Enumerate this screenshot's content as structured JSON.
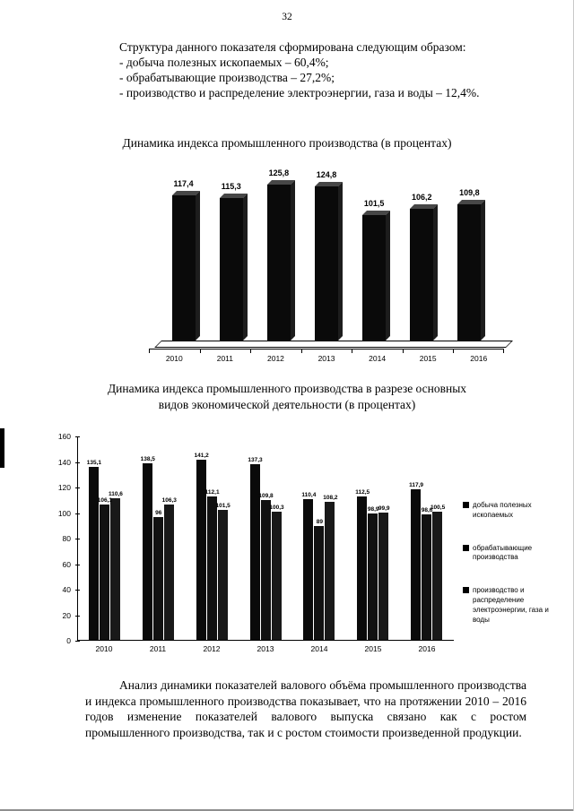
{
  "page": {
    "number": "32"
  },
  "intro": {
    "lead": "Структура данного показателя сформирована следующим образом:",
    "items": [
      "- добыча полезных ископаемых – 60,4%;",
      "- обрабатывающие производства – 27,2%;",
      "- производство и распределение электроэнергии, газа и воды – 12,4%."
    ]
  },
  "chart2": {
    "title_line1": "Динамика индекса промышленного производства в разрезе основных",
    "title_line2": "видов экономической деятельности (в процентах)"
  },
  "closing": "Анализ динамики показателей валового объёма промышленного производства и индекса промышленного производства показывает, что на протяжении 2010 – 2016 годов изменение показателей валового выпуска связано как с ростом промышленного производства, так и с ростом стоимости произведенной продукции.",
  "chart_data": [
    {
      "type": "bar",
      "title": "Динамика индекса промышленного производства (в процентах)",
      "categories": [
        "2010",
        "2011",
        "2012",
        "2013",
        "2014",
        "2015",
        "2016"
      ],
      "values": [
        117.4,
        115.3,
        125.8,
        124.8,
        101.5,
        106.2,
        109.8
      ],
      "labels": [
        "117,4",
        "115,3",
        "125,8",
        "124,8",
        "101,5",
        "106,2",
        "109,8"
      ],
      "bar_color": "#0a0a0a",
      "style": "3d-columns",
      "grid": false,
      "legend_position": "none"
    },
    {
      "type": "bar",
      "title": "Динамика индекса промышленного производства в разрезе основных видов экономической деятельности (в процентах)",
      "categories": [
        "2010",
        "2011",
        "2012",
        "2013",
        "2014",
        "2015",
        "2016"
      ],
      "series": [
        {
          "name": "добыча полезных ископаемых",
          "values": [
            135.1,
            138.5,
            141.2,
            137.3,
            110.4,
            112.5,
            117.9
          ],
          "labels": [
            "135,1",
            "138,5",
            "141,2",
            "137,3",
            "110,4",
            "112,5",
            "117,9"
          ]
        },
        {
          "name": "обрабатывающие производства",
          "values": [
            106.1,
            96,
            112.1,
            109.8,
            89,
            98.9,
            98.6
          ],
          "labels": [
            "106,1",
            "96",
            "112,1",
            "109,8",
            "89",
            "98,9",
            "98,6"
          ]
        },
        {
          "name": "производство и распределение электроэнергии, газа и воды",
          "values": [
            110.6,
            106.3,
            101.5,
            100.3,
            108.2,
            99.9,
            100.5
          ],
          "labels": [
            "110,6",
            "106,3",
            "101,5",
            "100,3",
            "108,2",
            "99,9",
            "100,5"
          ]
        }
      ],
      "ylim": [
        0,
        160
      ],
      "yticks": [
        0,
        20,
        40,
        60,
        80,
        100,
        120,
        140,
        160
      ],
      "xlabel": "",
      "ylabel": "",
      "bar_color": "#0a0a0a",
      "grid": false,
      "legend_position": "right"
    }
  ]
}
